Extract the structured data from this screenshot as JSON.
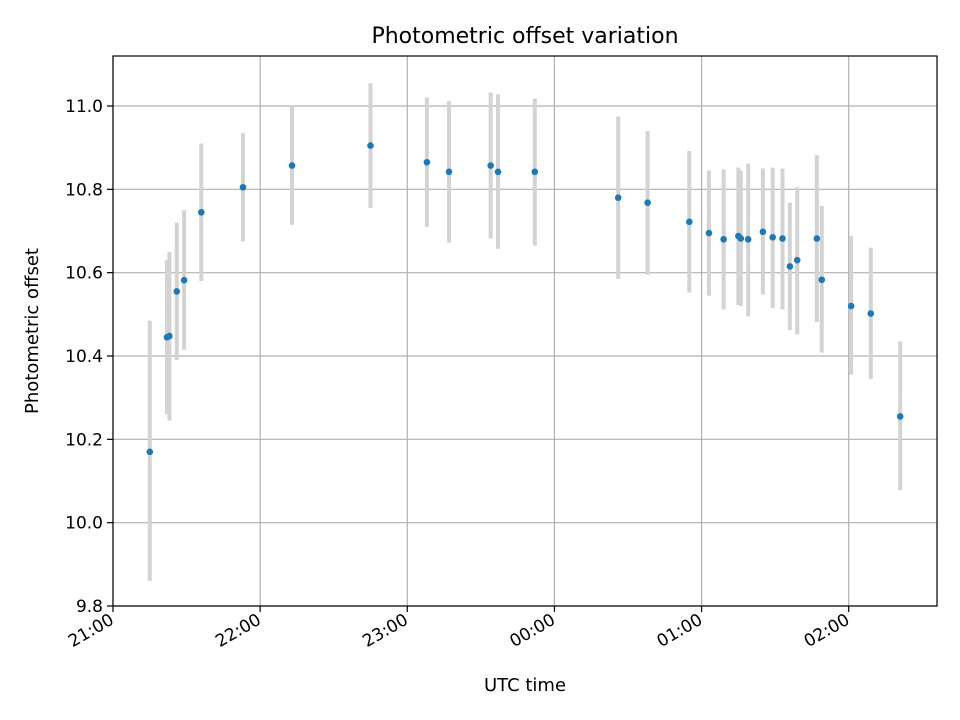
{
  "chart_data": {
    "type": "scatter",
    "title": "Photometric offset variation",
    "xlabel": "UTC time",
    "ylabel": "Photometric offset",
    "xlim": [
      "21:00",
      "02:36"
    ],
    "ylim": [
      9.8,
      11.12
    ],
    "x_ticks": [
      "21:00",
      "22:00",
      "23:00",
      "00:00",
      "01:00",
      "02:00"
    ],
    "y_ticks": [
      "9.8",
      "10.0",
      "10.2",
      "10.4",
      "10.6",
      "10.8",
      "11.0"
    ],
    "grid": true,
    "series": [
      {
        "marker_color": "#1f77b4",
        "errorbar_color": "#d3d3d3",
        "points": [
          {
            "x": "21:15",
            "y": 10.17,
            "ylow": 9.86,
            "yhigh": 10.485
          },
          {
            "x": "21:22",
            "y": 10.445,
            "ylow": 10.26,
            "yhigh": 10.63
          },
          {
            "x": "21:23",
            "y": 10.448,
            "ylow": 10.245,
            "yhigh": 10.65
          },
          {
            "x": "21:26",
            "y": 10.555,
            "ylow": 10.39,
            "yhigh": 10.72
          },
          {
            "x": "21:29",
            "y": 10.582,
            "ylow": 10.415,
            "yhigh": 10.75
          },
          {
            "x": "21:36",
            "y": 10.745,
            "ylow": 10.58,
            "yhigh": 10.91
          },
          {
            "x": "21:53",
            "y": 10.805,
            "ylow": 10.675,
            "yhigh": 10.935
          },
          {
            "x": "22:13",
            "y": 10.857,
            "ylow": 10.715,
            "yhigh": 11.0
          },
          {
            "x": "22:45",
            "y": 10.905,
            "ylow": 10.755,
            "yhigh": 11.055
          },
          {
            "x": "23:08",
            "y": 10.865,
            "ylow": 10.71,
            "yhigh": 11.02
          },
          {
            "x": "23:17",
            "y": 10.842,
            "ylow": 10.672,
            "yhigh": 11.012
          },
          {
            "x": "23:34",
            "y": 10.857,
            "ylow": 10.682,
            "yhigh": 11.032
          },
          {
            "x": "23:37",
            "y": 10.842,
            "ylow": 10.657,
            "yhigh": 11.028
          },
          {
            "x": "23:52",
            "y": 10.842,
            "ylow": 10.665,
            "yhigh": 11.018
          },
          {
            "x": "00:26",
            "y": 10.78,
            "ylow": 10.585,
            "yhigh": 10.975
          },
          {
            "x": "00:38",
            "y": 10.768,
            "ylow": 10.595,
            "yhigh": 10.94
          },
          {
            "x": "00:55",
            "y": 10.722,
            "ylow": 10.552,
            "yhigh": 10.892
          },
          {
            "x": "01:03",
            "y": 10.695,
            "ylow": 10.545,
            "yhigh": 10.845
          },
          {
            "x": "01:09",
            "y": 10.68,
            "ylow": 10.512,
            "yhigh": 10.848
          },
          {
            "x": "01:15",
            "y": 10.688,
            "ylow": 10.522,
            "yhigh": 10.852
          },
          {
            "x": "01:16",
            "y": 10.682,
            "ylow": 10.52,
            "yhigh": 10.845
          },
          {
            "x": "01:19",
            "y": 10.68,
            "ylow": 10.495,
            "yhigh": 10.862
          },
          {
            "x": "01:25",
            "y": 10.698,
            "ylow": 10.548,
            "yhigh": 10.85
          },
          {
            "x": "01:29",
            "y": 10.685,
            "ylow": 10.515,
            "yhigh": 10.852
          },
          {
            "x": "01:33",
            "y": 10.682,
            "ylow": 10.512,
            "yhigh": 10.85
          },
          {
            "x": "01:36",
            "y": 10.615,
            "ylow": 10.462,
            "yhigh": 10.768
          },
          {
            "x": "01:39",
            "y": 10.63,
            "ylow": 10.452,
            "yhigh": 10.805
          },
          {
            "x": "01:47",
            "y": 10.682,
            "ylow": 10.482,
            "yhigh": 10.882
          },
          {
            "x": "01:49",
            "y": 10.583,
            "ylow": 10.408,
            "yhigh": 10.76
          },
          {
            "x": "02:01",
            "y": 10.52,
            "ylow": 10.355,
            "yhigh": 10.688
          },
          {
            "x": "02:09",
            "y": 10.502,
            "ylow": 10.345,
            "yhigh": 10.66
          },
          {
            "x": "02:21",
            "y": 10.255,
            "ylow": 10.078,
            "yhigh": 10.435
          }
        ]
      }
    ]
  }
}
